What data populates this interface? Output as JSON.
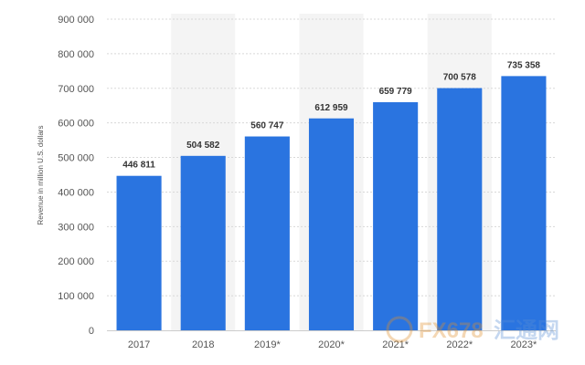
{
  "chart_data": {
    "type": "bar",
    "categories": [
      "2017",
      "2018",
      "2019*",
      "2020*",
      "2021*",
      "2022*",
      "2023*"
    ],
    "values": [
      446811,
      504582,
      560747,
      612959,
      659779,
      700578,
      735358
    ],
    "value_labels": [
      "446 811",
      "504 582",
      "560 747",
      "612 959",
      "659 779",
      "700 578",
      "735 358"
    ],
    "ylabel": "Revenue in million U.S. dollars",
    "ylim": [
      0,
      900000
    ],
    "y_ticks": [
      0,
      100000,
      200000,
      300000,
      400000,
      500000,
      600000,
      700000,
      800000,
      900000
    ],
    "y_tick_labels": [
      "0",
      "100 000",
      "200 000",
      "300 000",
      "400 000",
      "500 000",
      "600 000",
      "700 000",
      "800 000",
      "900 000"
    ],
    "grid": true,
    "bar_color": "#2a74e0",
    "band_color": "#f4f4f4"
  },
  "watermark": {
    "brand": "FX678",
    "cn": "汇通网"
  }
}
